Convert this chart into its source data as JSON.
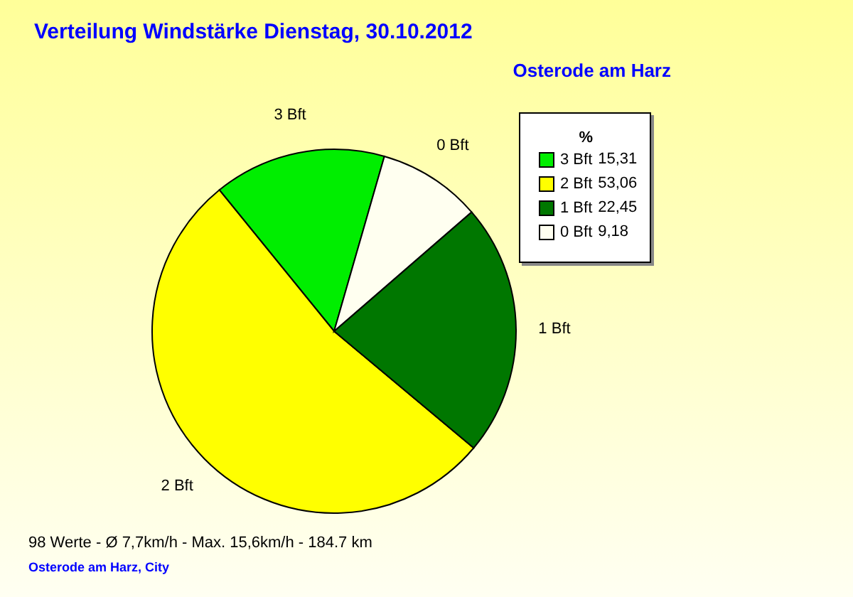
{
  "chart_data": {
    "type": "pie",
    "title": "Verteilung Windstärke  Dienstag, 30.10.2012",
    "subtitle": "Osterode am Harz",
    "legend_title": "%",
    "legend": "top right",
    "categories": [
      "3 Bft",
      "2 Bft",
      "1 Bft",
      "0 Bft"
    ],
    "values": [
      15.31,
      53.06,
      22.45,
      9.18
    ],
    "value_labels": [
      "15,31",
      "53,06",
      "22,45",
      "9,18"
    ],
    "colors": [
      "#00ee00",
      "#ffff00",
      "#007700",
      "#fffff0"
    ],
    "annotations": [
      "98 Werte   -   Ø 7,7km/h  -  Max. 15,6km/h   -   184.7 km",
      "Osterode am Harz, City"
    ]
  }
}
